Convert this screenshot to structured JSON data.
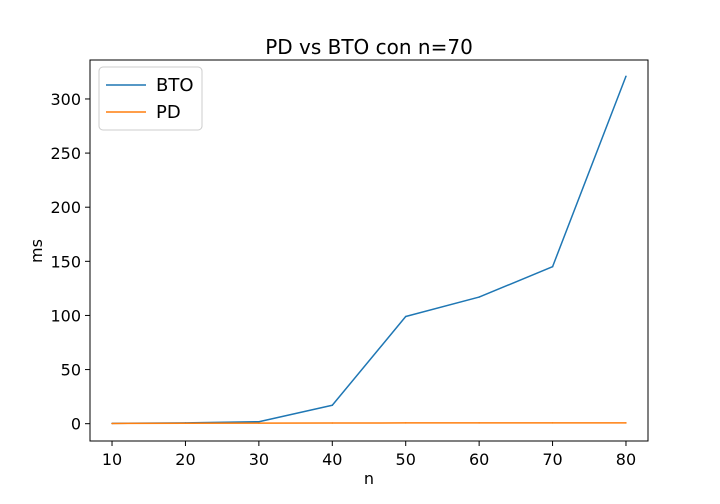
{
  "chart_data": {
    "type": "line",
    "title": "PD vs BTO con n=70",
    "xlabel": "n",
    "ylabel": "ms",
    "xlim": [
      7,
      83
    ],
    "ylim": [
      -16,
      336
    ],
    "xticks": [
      10,
      20,
      30,
      40,
      50,
      60,
      70,
      80
    ],
    "yticks": [
      0,
      50,
      100,
      150,
      200,
      250,
      300
    ],
    "grid": false,
    "legend_position": "top-left",
    "x": [
      10,
      20,
      30,
      40,
      50,
      60,
      70,
      80
    ],
    "series": [
      {
        "name": "BTO",
        "color": "#1f77b4",
        "values": [
          0.3,
          0.8,
          1.8,
          17,
          99,
          117,
          145,
          321
        ]
      },
      {
        "name": "PD",
        "color": "#ff7f0e",
        "values": [
          0.2,
          0.4,
          0.5,
          0.6,
          0.7,
          0.7,
          0.8,
          0.8
        ]
      }
    ]
  }
}
